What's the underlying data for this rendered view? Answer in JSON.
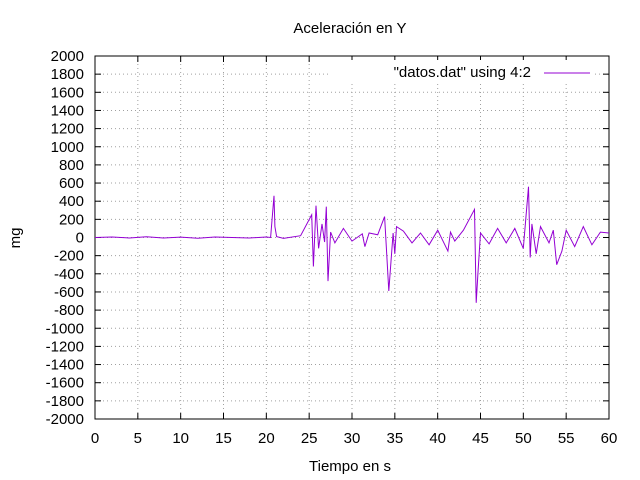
{
  "chart_data": {
    "type": "line",
    "title": "Aceleración en Y",
    "xlabel": "Tiempo en s",
    "ylabel": "mg",
    "xlim": [
      0,
      60
    ],
    "ylim": [
      -2000,
      2000
    ],
    "x_ticks": [
      0,
      5,
      10,
      15,
      20,
      25,
      30,
      35,
      40,
      45,
      50,
      55,
      60
    ],
    "y_ticks": [
      -2000,
      -1800,
      -1600,
      -1400,
      -1200,
      -1000,
      -800,
      -600,
      -400,
      -200,
      0,
      200,
      400,
      600,
      800,
      1000,
      1200,
      1400,
      1600,
      1800,
      2000
    ],
    "grid": true,
    "legend_position": "top-right",
    "series": [
      {
        "name": "\"datos.dat\" using 4:2",
        "color": "#9400d3",
        "x": [
          0,
          2,
          4,
          6,
          8,
          10,
          12,
          14,
          16,
          18,
          20,
          20.5,
          20.9,
          21.0,
          21.2,
          22,
          24,
          25.3,
          25.5,
          25.8,
          26.1,
          26.5,
          26.8,
          27.0,
          27.2,
          27.5,
          28,
          29,
          30,
          31.2,
          31.5,
          32,
          33,
          33.8,
          34.0,
          34.3,
          34.8,
          35.0,
          35.2,
          36,
          37,
          38,
          39,
          40,
          41.2,
          41.5,
          42,
          43,
          44.3,
          44.5,
          44.7,
          45,
          46,
          47,
          48,
          49,
          50,
          50.6,
          50.8,
          51.0,
          51.5,
          52,
          53,
          53.5,
          53.9,
          54.5,
          55,
          56,
          57,
          58,
          59,
          60
        ],
        "y": [
          0,
          5,
          -5,
          8,
          -6,
          4,
          -8,
          6,
          0,
          -5,
          5,
          0,
          460,
          120,
          10,
          -10,
          20,
          250,
          -320,
          350,
          -120,
          150,
          -50,
          340,
          -480,
          60,
          -60,
          100,
          -40,
          40,
          -100,
          50,
          30,
          230,
          -100,
          -590,
          50,
          -180,
          120,
          70,
          -60,
          50,
          -80,
          80,
          -150,
          60,
          -40,
          80,
          310,
          -720,
          -400,
          50,
          -70,
          100,
          -60,
          100,
          -120,
          560,
          -220,
          150,
          -180,
          120,
          -60,
          80,
          -300,
          -150,
          80,
          -100,
          120,
          -80,
          60,
          50
        ]
      }
    ]
  }
}
